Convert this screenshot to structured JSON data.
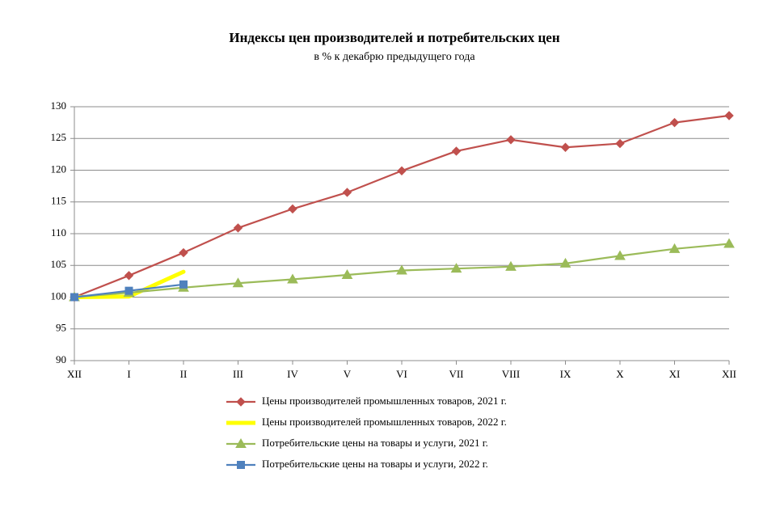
{
  "chart_data": {
    "type": "line",
    "title": "Индексы цен производителей и потребительских цен",
    "subtitle": "в % к декабрю предыдущего года",
    "categories": [
      "XII",
      "I",
      "II",
      "III",
      "IV",
      "V",
      "VI",
      "VII",
      "VIII",
      "IX",
      "X",
      "XI",
      "XII"
    ],
    "series": [
      {
        "name": "Цены производителей промышленных товаров, 2021 г.",
        "color": "#c0504d",
        "marker": "diamond",
        "values": [
          100,
          103.4,
          107.0,
          110.9,
          113.9,
          116.5,
          119.9,
          123.0,
          124.8,
          123.6,
          124.2,
          127.5,
          128.6
        ]
      },
      {
        "name": "Цены производителей промышленных товаров, 2022 г.",
        "color": "#ffff00",
        "marker": "none",
        "values": [
          100,
          100.1,
          104.0,
          null,
          null,
          null,
          null,
          null,
          null,
          null,
          null,
          null,
          null
        ]
      },
      {
        "name": "Потребительские цены на товары и услуги, 2021 г.",
        "color": "#9bbb59",
        "marker": "triangle",
        "values": [
          100,
          100.7,
          101.5,
          102.2,
          102.8,
          103.5,
          104.2,
          104.5,
          104.8,
          105.3,
          106.5,
          107.6,
          108.4
        ]
      },
      {
        "name": "Потребительские цены на товары и услуги, 2022 г.",
        "color": "#4f81bd",
        "marker": "square",
        "values": [
          100,
          101.0,
          102.0,
          null,
          null,
          null,
          null,
          null,
          null,
          null,
          null,
          null,
          null
        ]
      }
    ],
    "ylim": [
      90,
      130
    ],
    "yticks": [
      90,
      95,
      100,
      105,
      110,
      115,
      120,
      125,
      130
    ],
    "grid": true
  }
}
